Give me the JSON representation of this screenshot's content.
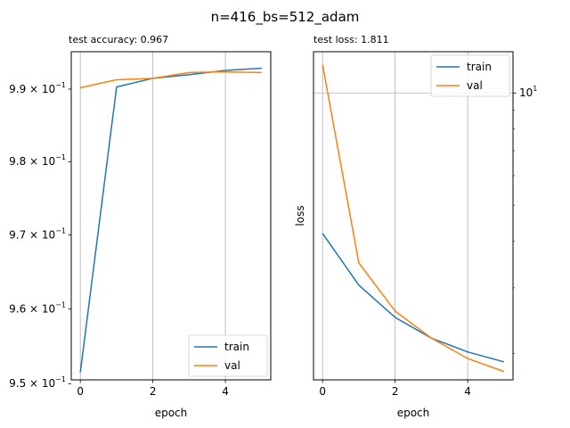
{
  "figure": {
    "suptitle": "n=416_bs=512_adam"
  },
  "chart_data": [
    {
      "type": "line",
      "title": "test accuracy: 0.967",
      "xlabel": "epoch",
      "ylabel": "",
      "yscale": "log",
      "xlim": [
        -0.25,
        5.25
      ],
      "ylim": [
        0.9505,
        0.9952
      ],
      "xticks": [
        0,
        2,
        4
      ],
      "yticks": [
        {
          "value": 0.95,
          "mantissa": "9.5",
          "base": "10",
          "exp": "−1"
        },
        {
          "value": 0.96,
          "mantissa": "9.6",
          "base": "10",
          "exp": "−1"
        },
        {
          "value": 0.97,
          "mantissa": "9.7",
          "base": "10",
          "exp": "−1"
        },
        {
          "value": 0.98,
          "mantissa": "9.8",
          "base": "10",
          "exp": "−1"
        },
        {
          "value": 0.99,
          "mantissa": "9.9",
          "base": "10",
          "exp": "−1"
        }
      ],
      "grid": "x",
      "legend": "lower-right",
      "x": [
        0,
        1,
        2,
        3,
        4,
        5
      ],
      "series": [
        {
          "name": "train",
          "color": "#1f77b4",
          "values": [
            0.9515,
            0.9903,
            0.9915,
            0.992,
            0.9926,
            0.9929
          ]
        },
        {
          "name": "val",
          "color": "#ff7f0e",
          "values": [
            0.9902,
            0.9913,
            0.9915,
            0.9923,
            0.9924,
            0.9923
          ]
        }
      ]
    },
    {
      "type": "line",
      "title": "test loss: 1.811",
      "xlabel": "epoch",
      "ylabel": "loss",
      "yscale": "log",
      "xlim": [
        -0.25,
        5.25
      ],
      "ylim": [
        1.7,
        12.9
      ],
      "xticks": [
        0,
        2,
        4
      ],
      "yticks": [
        {
          "value": 10,
          "base": "10",
          "exp": "1"
        }
      ],
      "grid": "both",
      "legend": "upper-right",
      "x": [
        0,
        1,
        2,
        3,
        4,
        5
      ],
      "series": [
        {
          "name": "train",
          "color": "#1f77b4",
          "values": [
            4.2,
            3.05,
            2.5,
            2.2,
            2.02,
            1.9
          ]
        },
        {
          "name": "val",
          "color": "#ff7f0e",
          "values": [
            11.9,
            3.5,
            2.6,
            2.2,
            1.94,
            1.79
          ]
        }
      ]
    }
  ]
}
